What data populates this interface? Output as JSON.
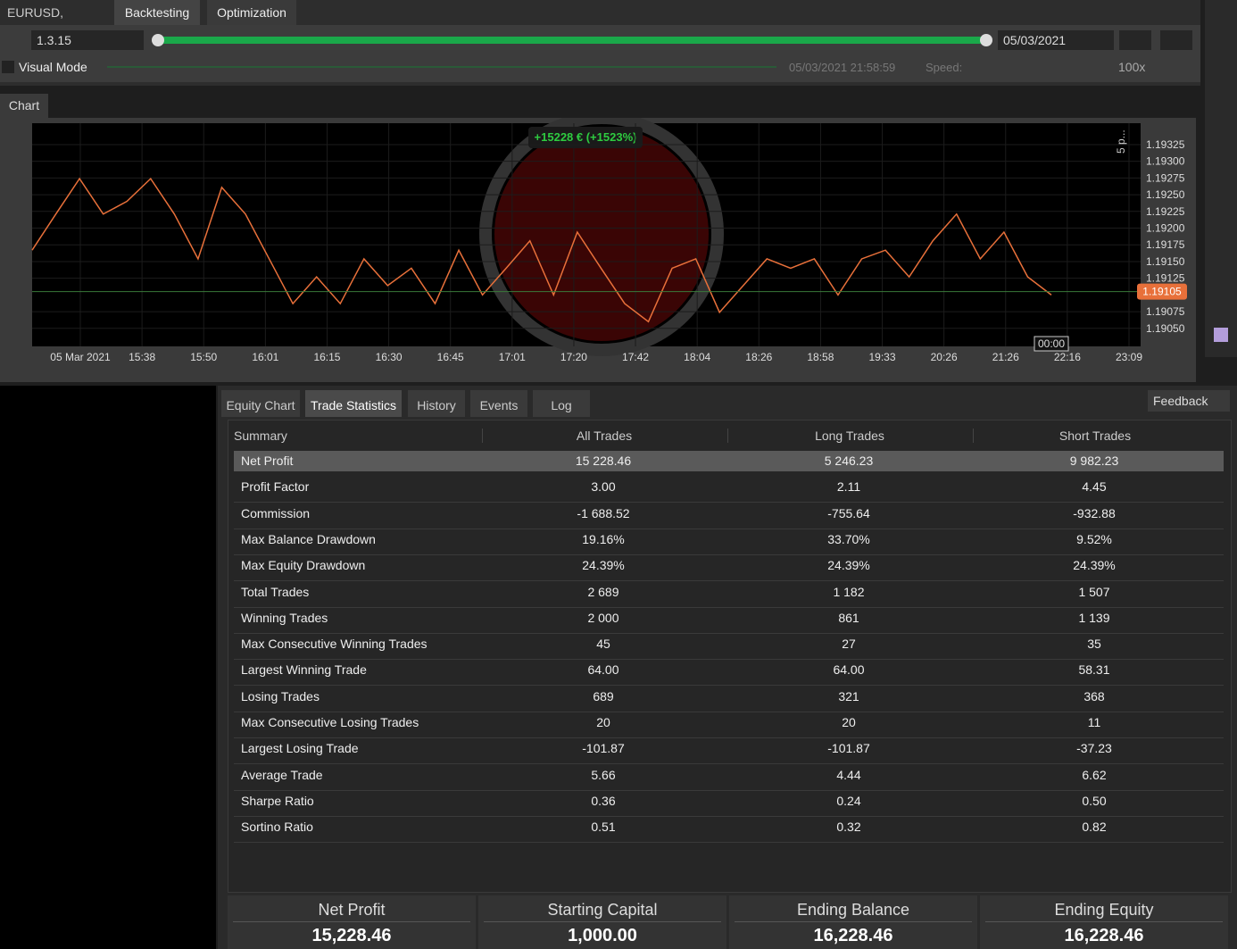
{
  "header": {
    "symbol": "EURUSD,",
    "tabs": [
      "Backtesting",
      "Optimization"
    ]
  },
  "controls": {
    "version": "1.3.15",
    "date": "05/03/2021",
    "visual_mode": "Visual Mode",
    "timestamp": "05/03/2021 21:58:59",
    "speed_label": "Speed:",
    "speed": "100x"
  },
  "chart_tab": "Chart",
  "chart_data": {
    "type": "line",
    "annotation": "+15228 € (+1523%)",
    "period_label": "5 p...",
    "time_marker": "00:00",
    "current_price": 1.19105,
    "color": "#e8703a",
    "x_labels": [
      "05 Mar 2021",
      "15:38",
      "15:50",
      "16:01",
      "16:15",
      "16:30",
      "16:45",
      "17:01",
      "17:20",
      "17:42",
      "18:04",
      "18:26",
      "18:58",
      "19:33",
      "20:26",
      "21:26",
      "22:16",
      "23:09"
    ],
    "values": [
      1.19167,
      1.19221,
      1.19274,
      1.19221,
      1.1924,
      1.19274,
      1.19221,
      1.19154,
      1.19261,
      1.19221,
      1.19154,
      1.19087,
      1.19127,
      1.19087,
      1.19154,
      1.19114,
      1.1914,
      1.19087,
      1.19167,
      1.191,
      1.1914,
      1.19181,
      1.191,
      1.19194,
      1.1914,
      1.19087,
      1.1906,
      1.1914,
      1.19154,
      1.19074,
      1.19114,
      1.19154,
      1.1914,
      1.19154,
      1.191,
      1.19154,
      1.19167,
      1.19127,
      1.19181,
      1.19221,
      1.19154,
      1.19194,
      1.19127,
      1.191
    ],
    "ylim": [
      1.19023,
      1.19357
    ],
    "yticks": [
      {
        "value": 1.19325,
        "label": "1.19325"
      },
      {
        "value": 1.193,
        "label": "1.19300"
      },
      {
        "value": 1.19275,
        "label": "1.19275"
      },
      {
        "value": 1.1925,
        "label": "1.19250"
      },
      {
        "value": 1.19225,
        "label": "1.19225"
      },
      {
        "value": 1.192,
        "label": "1.19200"
      },
      {
        "value": 1.19175,
        "label": "1.19175"
      },
      {
        "value": 1.1915,
        "label": "1.19150"
      },
      {
        "value": 1.19125,
        "label": "1.19125"
      },
      {
        "value": 1.19075,
        "label": "1.19075"
      },
      {
        "value": 1.1905,
        "label": "1.19050"
      }
    ],
    "grid": true
  },
  "tabs": [
    "Equity Chart",
    "Trade Statistics",
    "History",
    "Events",
    "Log"
  ],
  "feedback": "Feedback",
  "table": {
    "columns": [
      "Summary",
      "All Trades",
      "Long Trades",
      "Short Trades"
    ],
    "rows": [
      [
        "Net Profit",
        "15 228.46",
        "5 246.23",
        "9 982.23"
      ],
      [
        "Profit Factor",
        "3.00",
        "2.11",
        "4.45"
      ],
      [
        "Commission",
        "-1 688.52",
        "-755.64",
        "-932.88"
      ],
      [
        "Max Balance Drawdown",
        "19.16%",
        "33.70%",
        "9.52%"
      ],
      [
        "Max Equity Drawdown",
        "24.39%",
        "24.39%",
        "24.39%"
      ],
      [
        "Total Trades",
        "2 689",
        "1 182",
        "1 507"
      ],
      [
        "Winning Trades",
        "2 000",
        "861",
        "1 139"
      ],
      [
        "Max Consecutive Winning Trades",
        "45",
        "27",
        "35"
      ],
      [
        "Largest Winning Trade",
        "64.00",
        "64.00",
        "58.31"
      ],
      [
        "Losing Trades",
        "689",
        "321",
        "368"
      ],
      [
        "Max Consecutive Losing Trades",
        "20",
        "20",
        "11"
      ],
      [
        "Largest Losing Trade",
        "-101.87",
        "-101.87",
        "-37.23"
      ],
      [
        "Average Trade",
        "5.66",
        "4.44",
        "6.62"
      ],
      [
        "Sharpe Ratio",
        "0.36",
        "0.24",
        "0.50"
      ],
      [
        "Sortino Ratio",
        "0.51",
        "0.32",
        "0.82"
      ]
    ]
  },
  "summary": [
    {
      "label": "Net Profit",
      "value": "15,228.46"
    },
    {
      "label": "Starting Capital",
      "value": "1,000.00"
    },
    {
      "label": "Ending Balance",
      "value": "16,228.46"
    },
    {
      "label": "Ending Equity",
      "value": "16,228.46"
    }
  ]
}
